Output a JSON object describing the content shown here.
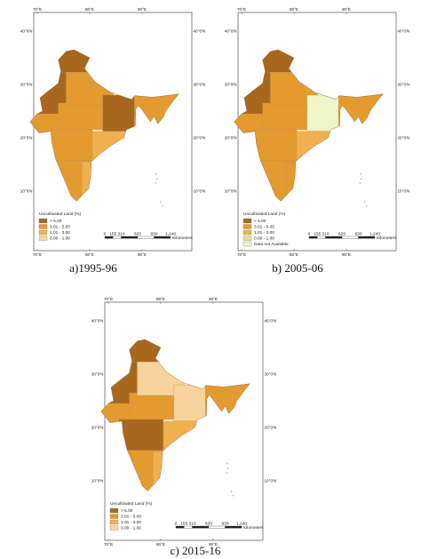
{
  "panels": [
    {
      "caption": "a)1995-96",
      "longitude_labels": [
        "70°E",
        "80°E",
        "90°E"
      ],
      "latitude_labels": [
        "40°0'N",
        "30°0'N",
        "20°0'N",
        "10°0'N"
      ],
      "legend": {
        "title": "Uncultivated Land (%)",
        "items": [
          {
            "label": "> 5.00",
            "color": "#a8671e"
          },
          {
            "label": "3.01 - 5.00",
            "color": "#e39b2f"
          },
          {
            "label": "1.01 - 3.00",
            "color": "#f0b04e"
          },
          {
            "label": "0.00 - 1.00",
            "color": "#f6d49c"
          }
        ]
      },
      "scale_bar": {
        "ticks": [
          "0",
          "155",
          "310",
          "620",
          "930",
          "1,240"
        ],
        "unit": "Kilometers"
      }
    },
    {
      "caption": "b) 2005-06",
      "longitude_labels": [
        "70°E",
        "80°E",
        "90°E"
      ],
      "latitude_labels": [
        "40°0'N",
        "30°0'N",
        "20°0'N",
        "10°0'N"
      ],
      "legend": {
        "title": "Uncultivated Land (%)",
        "items": [
          {
            "label": "> 5.00",
            "color": "#a8671e"
          },
          {
            "label": "3.01 - 5.00",
            "color": "#e39b2f"
          },
          {
            "label": "1.01 - 3.00",
            "color": "#f0b04e"
          },
          {
            "label": "0.00 - 1.00",
            "color": "#f6d49c"
          },
          {
            "label": "Data not Available",
            "color": "#eef5c8"
          }
        ]
      },
      "scale_bar": {
        "ticks": [
          "0",
          "155",
          "310",
          "620",
          "930",
          "1,240"
        ],
        "unit": "Kilometers"
      }
    },
    {
      "caption": "c) 2015-16",
      "longitude_labels": [
        "70°E",
        "80°E",
        "90°E"
      ],
      "latitude_labels": [
        "40°0'N",
        "30°0'N",
        "20°0'N",
        "10°0'N"
      ],
      "legend": {
        "title": "Uncultivated Land (%)",
        "items": [
          {
            "label": "> 5.00",
            "color": "#a8671e"
          },
          {
            "label": "3.01 - 5.00",
            "color": "#e39b2f"
          },
          {
            "label": "1.01 - 3.00",
            "color": "#f0b04e"
          },
          {
            "label": "0.00 - 1.00",
            "color": "#f6d49c"
          }
        ]
      },
      "scale_bar": {
        "ticks": [
          "0",
          "155",
          "310",
          "620",
          "930",
          "1,240"
        ],
        "unit": "Kilometers"
      }
    }
  ]
}
